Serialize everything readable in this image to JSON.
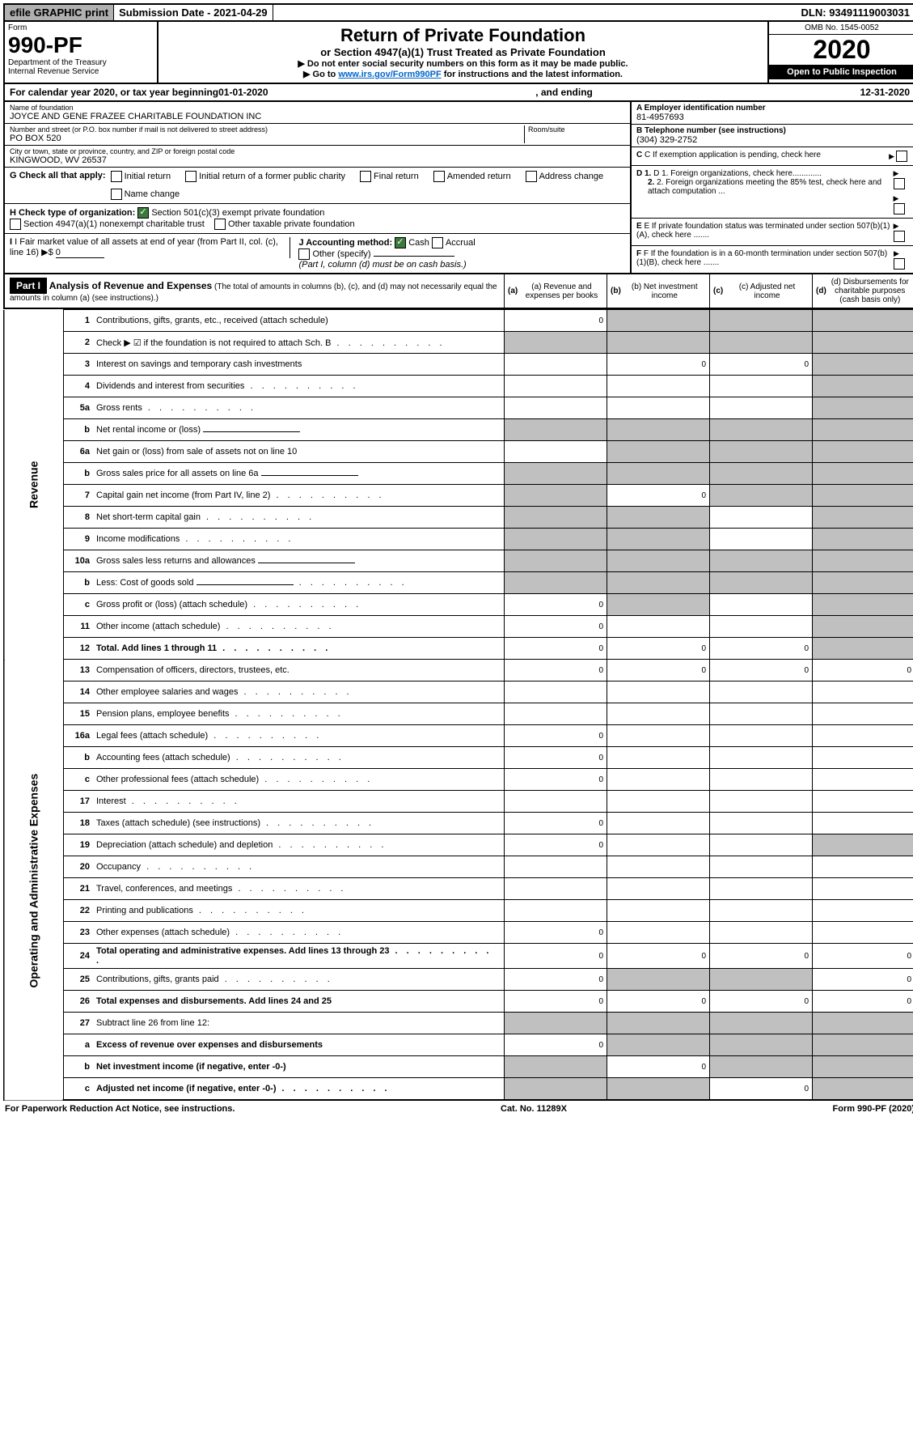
{
  "top": {
    "efile": "efile GRAPHIC print",
    "subdate_label": "Submission Date - ",
    "subdate": "2021-04-29",
    "dln_label": "DLN: ",
    "dln": "93491119003031"
  },
  "header": {
    "form_label": "Form",
    "form_no": "990-PF",
    "dept": "Department of the Treasury",
    "irs": "Internal Revenue Service",
    "title": "Return of Private Foundation",
    "subtitle": "or Section 4947(a)(1) Trust Treated as Private Foundation",
    "instr1": "▶ Do not enter social security numbers on this form as it may be made public.",
    "instr2_pre": "▶ Go to ",
    "instr2_link": "www.irs.gov/Form990PF",
    "instr2_post": " for instructions and the latest information.",
    "omb": "OMB No. 1545-0052",
    "year": "2020",
    "inspect": "Open to Public Inspection"
  },
  "calyear": {
    "text_pre": "For calendar year 2020, or tax year beginning ",
    "begin": "01-01-2020",
    "mid": ", and ending ",
    "end": "12-31-2020"
  },
  "info": {
    "name_label": "Name of foundation",
    "name": "JOYCE AND GENE FRAZEE CHARITABLE FOUNDATION INC",
    "addr_label": "Number and street (or P.O. box number if mail is not delivered to street address)",
    "room_label": "Room/suite",
    "addr": "PO BOX 520",
    "city_label": "City or town, state or province, country, and ZIP or foreign postal code",
    "city": "KINGWOOD, WV  26537",
    "ein_label": "A Employer identification number",
    "ein": "81-4957693",
    "tel_label": "B Telephone number (see instructions)",
    "tel": "(304) 329-2752",
    "c_label": "C If exemption application is pending, check here",
    "d1_label": "D 1. Foreign organizations, check here.............",
    "d2_label": "2. Foreign organizations meeting the 85% test, check here and attach computation ...",
    "e_label": "E If private foundation status was terminated under section 507(b)(1)(A), check here .......",
    "f_label": "F If the foundation is in a 60-month termination under section 507(b)(1)(B), check here .......",
    "g_label": "G Check all that apply:",
    "g_opts": [
      "Initial return",
      "Initial return of a former public charity",
      "Final return",
      "Amended return",
      "Address change",
      "Name change"
    ],
    "h_label": "H Check type of organization:",
    "h_opts": [
      "Section 501(c)(3) exempt private foundation",
      "Section 4947(a)(1) nonexempt charitable trust",
      "Other taxable private foundation"
    ],
    "i_label": "I Fair market value of all assets at end of year (from Part II, col. (c), line 16) ▶$ ",
    "i_val": "0",
    "j_label": "J Accounting method:",
    "j_opts": [
      "Cash",
      "Accrual",
      "Other (specify)"
    ],
    "j_note": "(Part I, column (d) must be on cash basis.)"
  },
  "part1": {
    "label": "Part I",
    "title": "Analysis of Revenue and Expenses",
    "note": "(The total of amounts in columns (b), (c), and (d) may not necessarily equal the amounts in column (a) (see instructions).)",
    "cols": {
      "a": "(a)  Revenue and expenses per books",
      "b": "(b)  Net investment income",
      "c": "(c)  Adjusted net income",
      "d": "(d)  Disbursements for charitable purposes (cash basis only)"
    }
  },
  "sides": {
    "revenue": "Revenue",
    "expenses": "Operating and Administrative Expenses"
  },
  "lines": [
    {
      "n": "1",
      "d": "Contributions, gifts, grants, etc., received (attach schedule)",
      "a": "0",
      "shade": [
        "b",
        "c",
        "d"
      ]
    },
    {
      "n": "2",
      "d": "Check ▶ ☑ if the foundation is not required to attach Sch. B",
      "a": "",
      "shade": [
        "a",
        "b",
        "c",
        "d"
      ],
      "dots": true,
      "noBorder": true
    },
    {
      "n": "3",
      "d": "Interest on savings and temporary cash investments",
      "a": "",
      "b": "0",
      "c": "0",
      "shade": [
        "d"
      ]
    },
    {
      "n": "4",
      "d": "Dividends and interest from securities",
      "a": "",
      "shade": [
        "d"
      ],
      "dots": true
    },
    {
      "n": "5a",
      "d": "Gross rents",
      "a": "",
      "shade": [
        "d"
      ],
      "dots": true
    },
    {
      "n": "b",
      "d": "Net rental income or (loss)",
      "a": "",
      "shade": [
        "a",
        "b",
        "c",
        "d"
      ],
      "underline": true
    },
    {
      "n": "6a",
      "d": "Net gain or (loss) from sale of assets not on line 10",
      "a": "",
      "shade": [
        "b",
        "c",
        "d"
      ]
    },
    {
      "n": "b",
      "d": "Gross sales price for all assets on line 6a",
      "a": "",
      "shade": [
        "a",
        "b",
        "c",
        "d"
      ],
      "underline": true
    },
    {
      "n": "7",
      "d": "Capital gain net income (from Part IV, line 2)",
      "a": "",
      "b": "0",
      "shade": [
        "a",
        "c",
        "d"
      ],
      "dots": true
    },
    {
      "n": "8",
      "d": "Net short-term capital gain",
      "a": "",
      "shade": [
        "a",
        "b",
        "d"
      ],
      "dots": true
    },
    {
      "n": "9",
      "d": "Income modifications",
      "a": "",
      "shade": [
        "a",
        "b",
        "d"
      ],
      "dots": true
    },
    {
      "n": "10a",
      "d": "Gross sales less returns and allowances",
      "a": "",
      "shade": [
        "a",
        "b",
        "c",
        "d"
      ],
      "underline": true
    },
    {
      "n": "b",
      "d": "Less: Cost of goods sold",
      "a": "",
      "shade": [
        "a",
        "b",
        "c",
        "d"
      ],
      "dots": true,
      "underline": true
    },
    {
      "n": "c",
      "d": "Gross profit or (loss) (attach schedule)",
      "a": "0",
      "shade": [
        "b",
        "d"
      ],
      "dots": true
    },
    {
      "n": "11",
      "d": "Other income (attach schedule)",
      "a": "0",
      "shade": [
        "d"
      ],
      "dots": true
    },
    {
      "n": "12",
      "d": "Total. Add lines 1 through 11",
      "a": "0",
      "b": "0",
      "c": "0",
      "shade": [
        "d"
      ],
      "bold": true,
      "dots": true
    },
    {
      "n": "13",
      "d": "Compensation of officers, directors, trustees, etc.",
      "a": "0",
      "b": "0",
      "c": "0",
      "dVal": "0"
    },
    {
      "n": "14",
      "d": "Other employee salaries and wages",
      "a": "",
      "dots": true
    },
    {
      "n": "15",
      "d": "Pension plans, employee benefits",
      "a": "",
      "dots": true
    },
    {
      "n": "16a",
      "d": "Legal fees (attach schedule)",
      "a": "0",
      "dots": true
    },
    {
      "n": "b",
      "d": "Accounting fees (attach schedule)",
      "a": "0",
      "dots": true
    },
    {
      "n": "c",
      "d": "Other professional fees (attach schedule)",
      "a": "0",
      "dots": true
    },
    {
      "n": "17",
      "d": "Interest",
      "a": "",
      "dots": true
    },
    {
      "n": "18",
      "d": "Taxes (attach schedule) (see instructions)",
      "a": "0",
      "dots": true
    },
    {
      "n": "19",
      "d": "Depreciation (attach schedule) and depletion",
      "a": "0",
      "shade": [
        "d"
      ],
      "dots": true
    },
    {
      "n": "20",
      "d": "Occupancy",
      "a": "",
      "dots": true
    },
    {
      "n": "21",
      "d": "Travel, conferences, and meetings",
      "a": "",
      "dots": true
    },
    {
      "n": "22",
      "d": "Printing and publications",
      "a": "",
      "dots": true
    },
    {
      "n": "23",
      "d": "Other expenses (attach schedule)",
      "a": "0",
      "dots": true
    },
    {
      "n": "24",
      "d": "Total operating and administrative expenses. Add lines 13 through 23",
      "a": "0",
      "b": "0",
      "c": "0",
      "dVal": "0",
      "bold": true,
      "dots": true
    },
    {
      "n": "25",
      "d": "Contributions, gifts, grants paid",
      "a": "0",
      "dVal": "0",
      "shade": [
        "b",
        "c"
      ],
      "dots": true
    },
    {
      "n": "26",
      "d": "Total expenses and disbursements. Add lines 24 and 25",
      "a": "0",
      "b": "0",
      "c": "0",
      "dVal": "0",
      "bold": true
    },
    {
      "n": "27",
      "d": "Subtract line 26 from line 12:",
      "shade": [
        "a",
        "b",
        "c",
        "d"
      ]
    },
    {
      "n": "a",
      "d": "Excess of revenue over expenses and disbursements",
      "a": "0",
      "shade": [
        "b",
        "c",
        "d"
      ],
      "bold": true
    },
    {
      "n": "b",
      "d": "Net investment income (if negative, enter -0-)",
      "b": "0",
      "shade": [
        "a",
        "c",
        "d"
      ],
      "bold": true
    },
    {
      "n": "c",
      "d": "Adjusted net income (if negative, enter -0-)",
      "c": "0",
      "shade": [
        "a",
        "b",
        "d"
      ],
      "bold": true,
      "dots": true
    }
  ],
  "footer": {
    "left": "For Paperwork Reduction Act Notice, see instructions.",
    "mid": "Cat. No. 11289X",
    "right": "Form 990-PF (2020)"
  }
}
